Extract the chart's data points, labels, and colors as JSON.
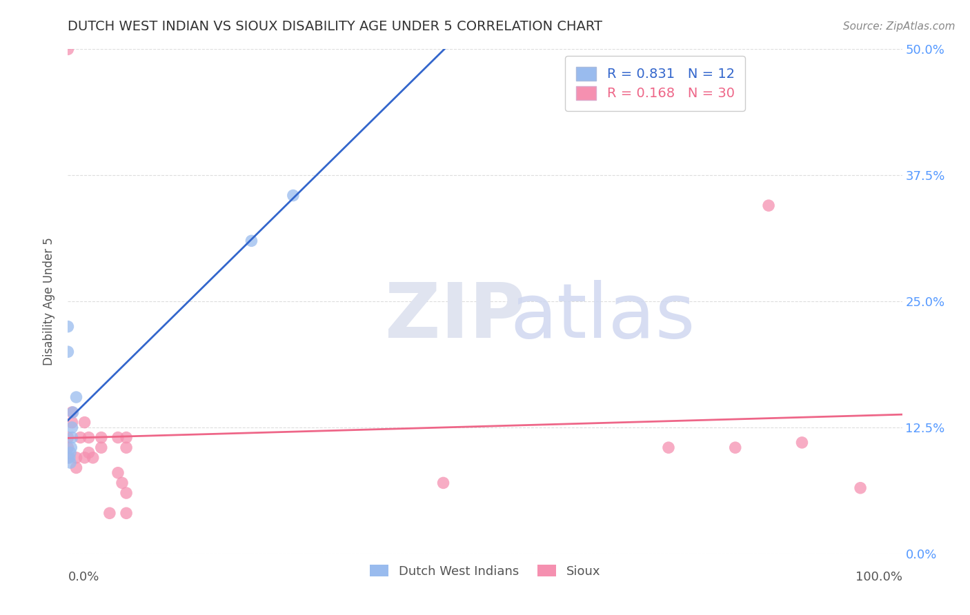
{
  "title": "DUTCH WEST INDIAN VS SIOUX DISABILITY AGE UNDER 5 CORRELATION CHART",
  "source_text": "Source: ZipAtlas.com",
  "ylabel": "Disability Age Under 5",
  "ytick_labels": [
    "0.0%",
    "12.5%",
    "25.0%",
    "37.5%",
    "50.0%"
  ],
  "ytick_values": [
    0.0,
    0.125,
    0.25,
    0.375,
    0.5
  ],
  "dutch_R": 0.831,
  "dutch_N": 12,
  "sioux_R": 0.168,
  "sioux_N": 30,
  "dutch_color": "#99bbee",
  "sioux_color": "#f590b0",
  "dutch_line_color": "#3366cc",
  "sioux_line_color": "#ee6688",
  "background_color": "#ffffff",
  "grid_color": "#dddddd",
  "title_color": "#333333",
  "xmin": 0.0,
  "xmax": 1.0,
  "ymin": 0.0,
  "ymax": 0.5,
  "dutch_west_indian_x": [
    0.0,
    0.0,
    0.002,
    0.003,
    0.003,
    0.004,
    0.005,
    0.005,
    0.006,
    0.01,
    0.22,
    0.27
  ],
  "dutch_west_indian_y": [
    0.2,
    0.225,
    0.095,
    0.09,
    0.1,
    0.105,
    0.115,
    0.125,
    0.14,
    0.155,
    0.31,
    0.355
  ],
  "sioux_x": [
    0.0,
    0.0,
    0.0,
    0.0,
    0.005,
    0.005,
    0.01,
    0.01,
    0.015,
    0.02,
    0.02,
    0.025,
    0.025,
    0.03,
    0.04,
    0.04,
    0.05,
    0.06,
    0.06,
    0.065,
    0.07,
    0.07,
    0.07,
    0.07,
    0.45,
    0.72,
    0.8,
    0.84,
    0.88,
    0.95
  ],
  "sioux_y": [
    0.5,
    0.115,
    0.105,
    0.095,
    0.14,
    0.13,
    0.095,
    0.085,
    0.115,
    0.13,
    0.095,
    0.115,
    0.1,
    0.095,
    0.115,
    0.105,
    0.04,
    0.115,
    0.08,
    0.07,
    0.115,
    0.105,
    0.06,
    0.04,
    0.07,
    0.105,
    0.105,
    0.345,
    0.11,
    0.065
  ]
}
